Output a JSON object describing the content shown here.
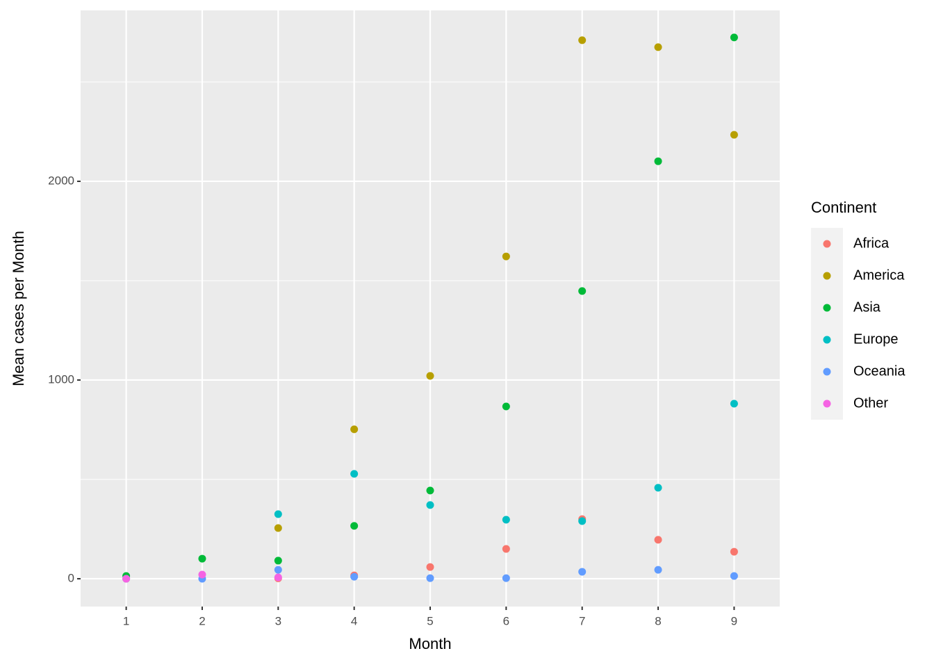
{
  "chart_data": {
    "type": "scatter",
    "x_label": "Month",
    "y_label": "Mean cases per Month",
    "legend_title": "Continent",
    "x": [
      1,
      2,
      3,
      4,
      5,
      6,
      7,
      8,
      9
    ],
    "series": [
      {
        "name": "Africa",
        "color": "#F8766D",
        "values": [
          0,
          null,
          2,
          17,
          59,
          150,
          300,
          196,
          136
        ]
      },
      {
        "name": "America",
        "color": "#B79F00",
        "values": [
          null,
          null,
          255,
          752,
          1021,
          1622,
          2710,
          2675,
          2234
        ]
      },
      {
        "name": "Asia",
        "color": "#00BA38",
        "values": [
          14,
          101,
          91,
          266,
          444,
          867,
          1448,
          2101,
          2724
        ]
      },
      {
        "name": "Europe",
        "color": "#00BFC4",
        "values": [
          null,
          null,
          325,
          528,
          371,
          297,
          290,
          458,
          881
        ]
      },
      {
        "name": "Oceania",
        "color": "#619CFF",
        "values": [
          0,
          0,
          45,
          10,
          3,
          3,
          35,
          45,
          14
        ]
      },
      {
        "name": "Other",
        "color": "#F564E3",
        "values": [
          0,
          21,
          7,
          null,
          null,
          null,
          null,
          null,
          null
        ]
      }
    ],
    "xlim": [
      0.4,
      9.6
    ],
    "xticks": [
      1,
      2,
      3,
      4,
      5,
      6,
      7,
      8,
      9
    ],
    "ylim": [
      -140,
      2860
    ],
    "yticks": [
      0,
      1000,
      2000
    ],
    "yminor": [
      500,
      1500,
      2500
    ],
    "grid": true,
    "legend": "right"
  }
}
